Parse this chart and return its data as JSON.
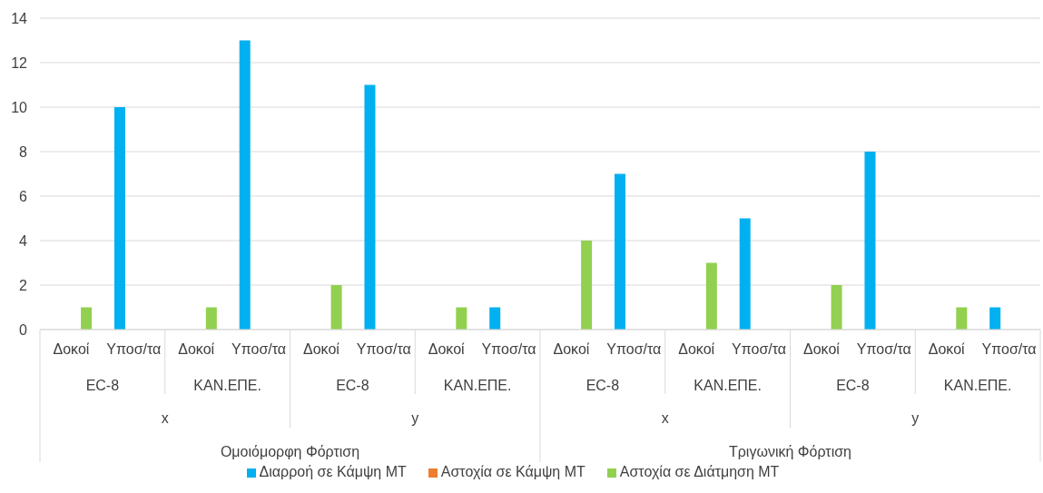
{
  "chart_data": {
    "type": "bar",
    "categories": [
      "Δοκοί",
      "Υποσ/τα",
      "Δοκοί",
      "Υποσ/τα",
      "Δοκοί",
      "Υποσ/τα",
      "Δοκοί",
      "Υποσ/τα",
      "Δοκοί",
      "Υποσ/τα",
      "Δοκοί",
      "Υποσ/τα",
      "Δοκοί",
      "Υποσ/τα",
      "Δοκοί",
      "Υποσ/τα"
    ],
    "series": [
      {
        "name": "Διαρροή σε Κάμψη ΜΤ",
        "color": "#00b0f0",
        "values": [
          0,
          10,
          0,
          13,
          0,
          11,
          0,
          1,
          0,
          7,
          0,
          5,
          0,
          8,
          0,
          1
        ]
      },
      {
        "name": "Αστοχία σε Κάμψη ΜΤ",
        "color": "#ed7d31",
        "values": [
          0,
          0,
          0,
          0,
          0,
          0,
          0,
          0,
          0,
          0,
          0,
          0,
          0,
          0,
          0,
          0
        ]
      },
      {
        "name": "Αστοχία σε Διάτμηση ΜΤ",
        "color": "#92d050",
        "values": [
          1,
          0,
          1,
          0,
          2,
          0,
          1,
          0,
          4,
          0,
          3,
          0,
          2,
          0,
          1,
          0
        ]
      }
    ],
    "ylim": [
      0,
      14
    ],
    "yticks": [
      0,
      2,
      4,
      6,
      8,
      10,
      12,
      14
    ],
    "grid": "y",
    "legend": "bottom",
    "annotations": [
      "EC-8",
      "ΚΑΝ.ΕΠΕ.",
      "EC-8",
      "ΚΑΝ.ΕΠΕ.",
      "EC-8",
      "ΚΑΝ.ΕΠΕ.",
      "EC-8",
      "ΚΑΝ.ΕΠΕ.",
      "x",
      "y",
      "x",
      "y",
      "Ομοιόμορφη Φόρτιση",
      "Τριγωνική Φόρτιση"
    ]
  }
}
